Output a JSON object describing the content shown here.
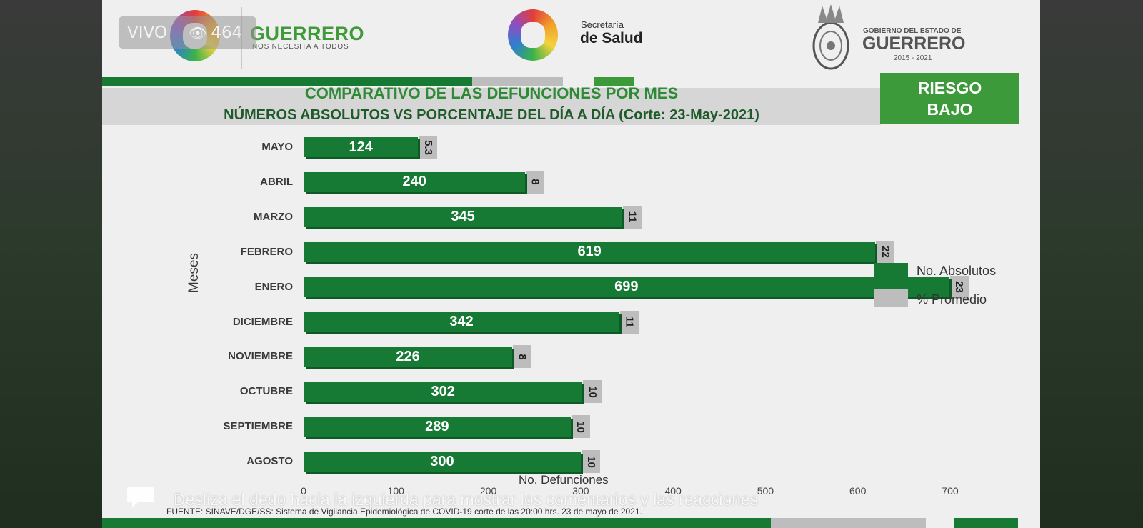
{
  "overlay": {
    "live_label": "VIVO",
    "view_count": "464",
    "swipe_hint": "Desliza el dedo hacia la izquierda para mostrar los comentarios y las reacciones",
    "comment_icon": "chat-bubble-icon"
  },
  "header": {
    "guerrero_brand": "GUERRERO",
    "guerrero_tagline": "NOS NECESITA A TODOS",
    "salud_small": "Secretaría",
    "salud_big": "de Salud",
    "gob_small": "GOBIERNO DEL ESTADO DE",
    "gob_big": "GUERRERO",
    "gob_years": "2015 - 2021"
  },
  "title": {
    "line1": "COMPARATIVO DE LAS DEFUNCIONES POR MES",
    "line2": "NÚMEROS ABSOLUTOS VS PORCENTAJE DEL DÍA A DÍA   (Corte: 23-May-2021)"
  },
  "risk": {
    "line1": "RIESGO",
    "line2": "BAJO"
  },
  "colors": {
    "green_bar": "#167a35",
    "gray_bar": "#bdbdbd",
    "accent_green": "#3c9a3a"
  },
  "chart_data": {
    "type": "bar",
    "orientation": "horizontal",
    "ylabel": "Meses",
    "xlabel": "No. Defunciones",
    "xlim": [
      0,
      700
    ],
    "xticks": [
      "0",
      "100",
      "200",
      "300",
      "400",
      "500",
      "600",
      "700"
    ],
    "categories": [
      "MAYO",
      "ABRIL",
      "MARZO",
      "FEBRERO",
      "ENERO",
      "DICIEMBRE",
      "NOVIEMBRE",
      "OCTUBRE",
      "SEPTIEMBRE",
      "AGOSTO"
    ],
    "series": [
      {
        "name": "No. Absolutos",
        "values": [
          124,
          240,
          345,
          619,
          699,
          342,
          226,
          302,
          289,
          300
        ]
      },
      {
        "name": "% Promedio",
        "values": [
          "5.3",
          "8",
          "11",
          "22",
          "23",
          "11",
          "8",
          "10",
          "10",
          "10"
        ]
      }
    ],
    "legend_position": "right",
    "grid": false
  },
  "footer": {
    "source": "FUENTE: SINAVE/DGE/SS: Sistema de Vigilancia Epidemiológica de COVID-19 corte de las 20:00 hrs. 23 de mayo  de 2021."
  }
}
